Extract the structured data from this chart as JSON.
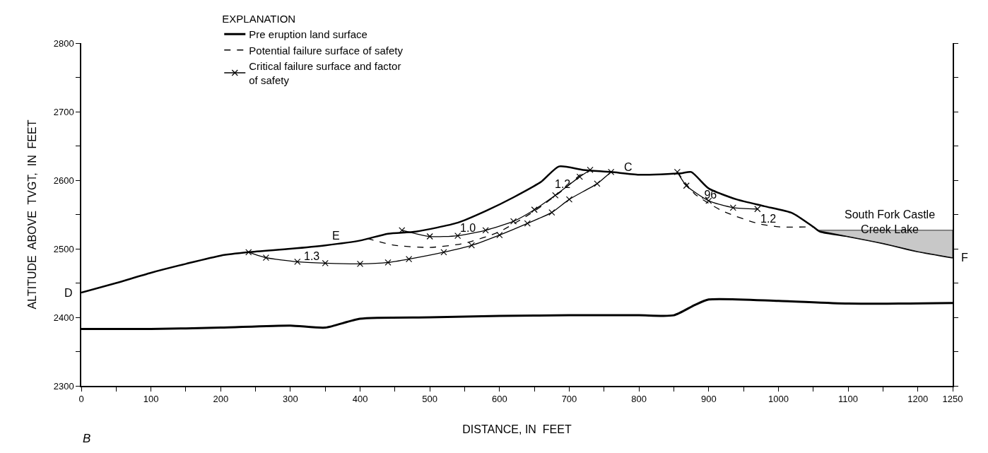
{
  "chart_data": {
    "type": "line",
    "xlabel": "DISTANCE, IN  FEET",
    "ylabel": "ALTITUDE  ABOVE  TVGT,  IN  FEET",
    "legend_title": "EXPLANATION",
    "legend": "top left",
    "grid": false,
    "xlim": [
      0,
      1250
    ],
    "ylim": [
      2300,
      2800
    ],
    "xticks": [
      0,
      {
        "value": 50,
        "label": null
      },
      100,
      {
        "value": 150,
        "label": null
      },
      200,
      {
        "value": 250,
        "label": null
      },
      300,
      {
        "value": 350,
        "label": null
      },
      400,
      {
        "value": 450,
        "label": null
      },
      500,
      {
        "value": 550,
        "label": null
      },
      600,
      {
        "value": 650,
        "label": null
      },
      700,
      {
        "value": 750,
        "label": null
      },
      800,
      {
        "value": 850,
        "label": null
      },
      900,
      {
        "value": 950,
        "label": null
      },
      1000,
      {
        "value": 1050,
        "label": null
      },
      1100,
      {
        "value": 1150,
        "label": null
      },
      1200,
      1250
    ],
    "yticks": [
      2300,
      {
        "value": 2350,
        "label": null
      },
      2400,
      {
        "value": 2450,
        "label": null
      },
      2500,
      {
        "value": 2550,
        "label": null
      },
      2600,
      {
        "value": 2650,
        "label": null
      },
      2700,
      {
        "value": 2750,
        "label": null
      },
      2800
    ],
    "series": [
      {
        "color": "#000000",
        "marker": "none",
        "line_style": "solid",
        "x": [
          0,
          50,
          100,
          150,
          200,
          240,
          300,
          350,
          400,
          440,
          480,
          540,
          580,
          620,
          660,
          685,
          720,
          760,
          800,
          860,
          875,
          900,
          940,
          980,
          1020,
          1050,
          1060,
          1100,
          1150,
          1200,
          1250
        ],
        "values": [
          2436,
          2450,
          2465,
          2478,
          2490,
          2495,
          2500,
          2505,
          2512,
          2522,
          2525,
          2538,
          2555,
          2575,
          2598,
          2620,
          2615,
          2612,
          2608,
          2610,
          2612,
          2588,
          2572,
          2562,
          2552,
          2532,
          2525,
          2518,
          2508,
          2496,
          2487
        ]
      },
      {
        "name": "Pre eruption land surface",
        "color": "#000000",
        "marker": "none",
        "line_style": "solid",
        "x": [
          0,
          100,
          200,
          300,
          350,
          400,
          500,
          600,
          700,
          800,
          850,
          880,
          900,
          1000,
          1100,
          1250
        ],
        "values": [
          2383,
          2383,
          2385,
          2388,
          2385,
          2398,
          2400,
          2402,
          2403,
          2403,
          2403,
          2418,
          2426,
          2424,
          2420,
          2421
        ]
      },
      {
        "name": "Potential failure surface of safety",
        "color": "#000000",
        "marker": "none",
        "line_style": "dashed",
        "x": [
          410,
          450,
          500,
          550,
          600,
          650,
          690,
          720
        ],
        "values": [
          2515,
          2505,
          2502,
          2508,
          2525,
          2555,
          2585,
          2612
        ]
      },
      {
        "color": "#000000",
        "marker": "none",
        "line_style": "dashed",
        "x": [
          855,
          880,
          920,
          970,
          1000,
          1050
        ],
        "values": [
          2612,
          2580,
          2555,
          2537,
          2532,
          2532
        ]
      },
      {
        "name": "Critical failure surface and factor\nof safety",
        "color": "#000000",
        "marker": "cross",
        "line_style": "solid",
        "x": [
          240,
          265,
          310,
          350,
          400,
          440,
          470,
          520,
          560,
          600,
          640,
          675,
          700,
          740,
          760
        ],
        "values": [
          2495,
          2487,
          2481,
          2479,
          2478,
          2480,
          2485,
          2495,
          2505,
          2520,
          2537,
          2553,
          2572,
          2595,
          2612
        ]
      },
      {
        "color": "#000000",
        "marker": "cross",
        "line_style": "solid",
        "x": [
          460,
          500,
          540,
          580,
          620,
          650,
          680,
          715,
          730
        ],
        "values": [
          2527,
          2518,
          2519,
          2527,
          2540,
          2557,
          2578,
          2605,
          2615
        ]
      },
      {
        "color": "#000000",
        "marker": "cross",
        "line_style": "solid",
        "x": [
          855,
          868,
          900,
          935,
          970
        ],
        "values": [
          2612,
          2592,
          2570,
          2560,
          2558
        ]
      },
      {
        "type": "area",
        "color": "#c8c8c8",
        "marker": "none",
        "line_style": "solid",
        "x": [
          1055,
          1250,
          1250,
          1200,
          1150,
          1100,
          1055
        ],
        "values": [
          2527,
          2527,
          2487,
          2496,
          2508,
          2518,
          2527
        ]
      }
    ],
    "annotations": [
      {
        "text": "D",
        "x": 0,
        "y": 2436
      },
      {
        "text": "E",
        "x": 365,
        "y": 2510
      },
      {
        "text": "C",
        "x": 785,
        "y": 2610
      },
      {
        "text": "F",
        "x": 1250,
        "y": 2487
      },
      {
        "text": "1.3",
        "x": 330,
        "y": 2480
      },
      {
        "text": "1.0",
        "x": 555,
        "y": 2521
      },
      {
        "text": "1.2",
        "x": 690,
        "y": 2585
      },
      {
        "text": ".96",
        "x": 900,
        "y": 2570
      },
      {
        "text": "1.2",
        "x": 985,
        "y": 2535
      },
      {
        "text": "South Fork Castle\nCreek Lake",
        "x": 1160,
        "y": 2530
      },
      "B"
    ]
  }
}
